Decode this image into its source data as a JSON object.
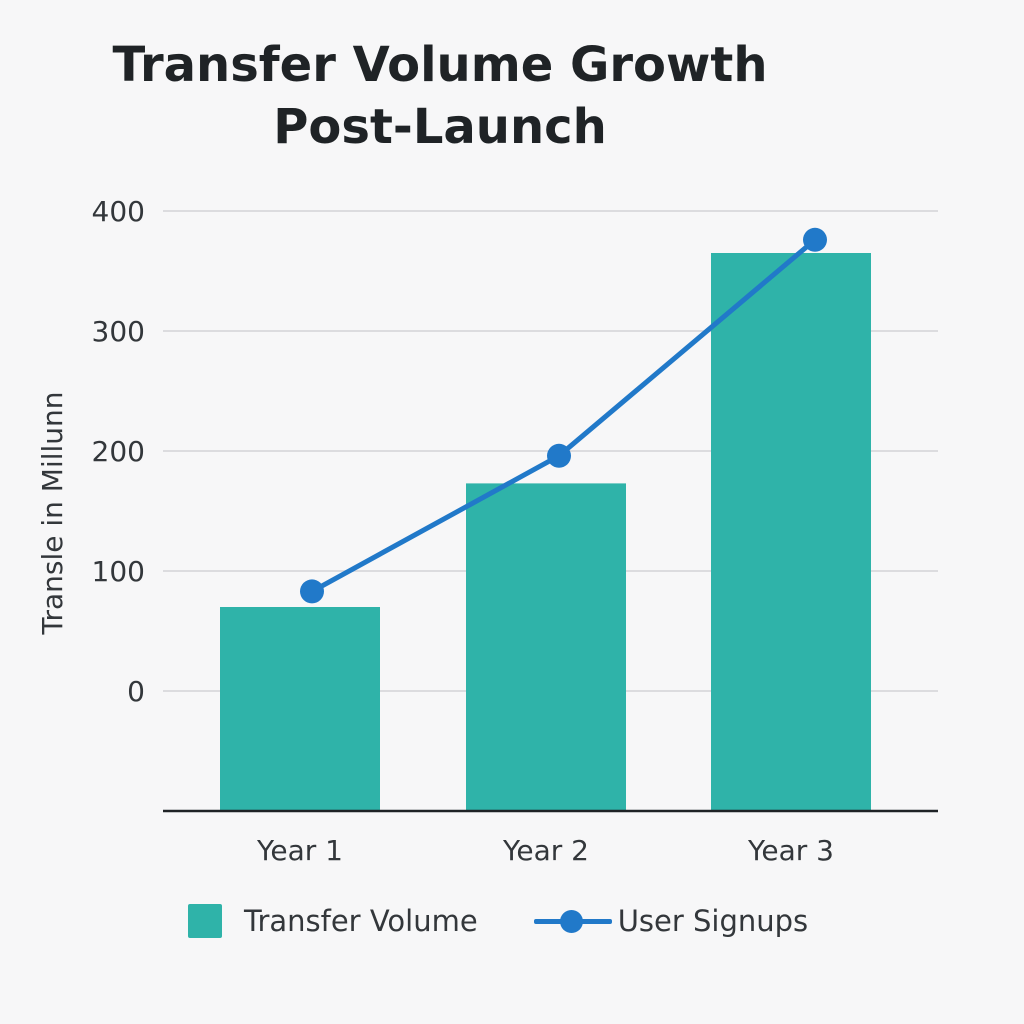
{
  "chart_data": {
    "type": "bar",
    "title_lines": [
      "Transfer Volume Growth",
      "Post-Launch"
    ],
    "ylabel": "Transle in Millunn",
    "xlabel": "",
    "categories": [
      "Year 1",
      "Year 2",
      "Year 3"
    ],
    "y_ticks": [
      0,
      100,
      200,
      300,
      400
    ],
    "ylim": [
      -100,
      400
    ],
    "grid": true,
    "legend_position": "bottom",
    "series": [
      {
        "name": "Transfer Volume",
        "kind": "bar",
        "color": "#2fb3a9",
        "values": [
          70,
          173,
          365
        ]
      },
      {
        "name": "User Signups",
        "kind": "line",
        "color": "#2179c9",
        "values": [
          83,
          196,
          376
        ]
      }
    ]
  }
}
